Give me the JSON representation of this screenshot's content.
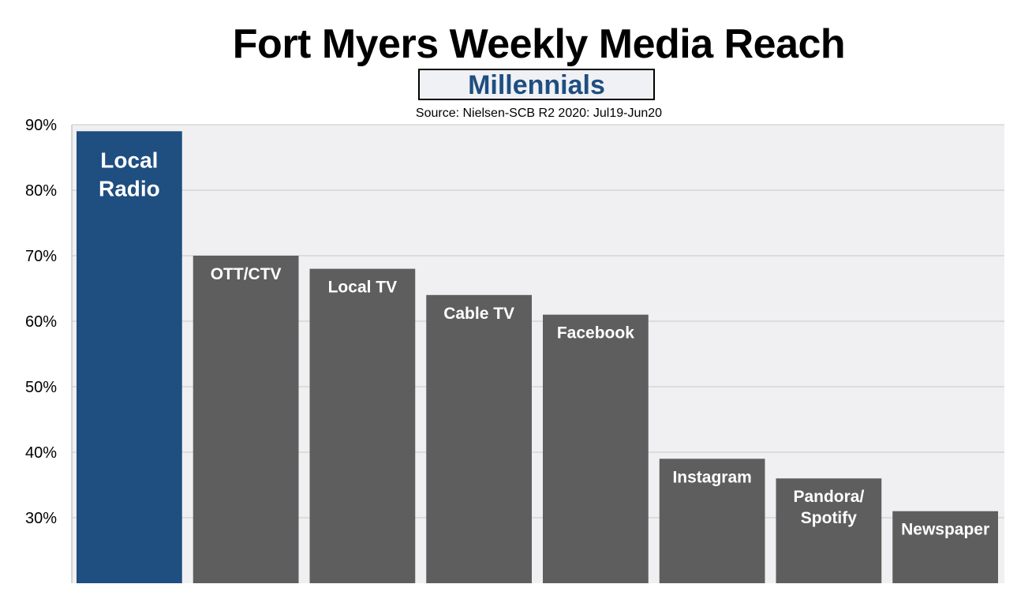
{
  "chart_data": {
    "type": "bar",
    "title": "Fort Myers Weekly Media Reach",
    "subtitle": "Millennials",
    "source": "Source: Nielsen-SCB R2 2020: Jul19-Jun20",
    "categories": [
      "Local Radio",
      "OTT/CTV",
      "Local TV",
      "Cable TV",
      "Facebook",
      "Instagram",
      "Pandora/ Spotify",
      "Newspaper"
    ],
    "bar_label_lines": [
      [
        "Local",
        "Radio"
      ],
      [
        "OTT/CTV"
      ],
      [
        "Local TV"
      ],
      [
        "Cable TV"
      ],
      [
        "Facebook"
      ],
      [
        "Instagram"
      ],
      [
        "Pandora/",
        "Spotify"
      ],
      [
        "Newspaper"
      ]
    ],
    "values": [
      89,
      70,
      68,
      64,
      61,
      39,
      36,
      31
    ],
    "ylim": [
      20,
      90
    ],
    "yticks": [
      30,
      40,
      50,
      60,
      70,
      80,
      90
    ],
    "ytick_labels": [
      "30%",
      "40%",
      "50%",
      "60%",
      "70%",
      "80%",
      "90%"
    ],
    "xlabel": "",
    "ylabel": "",
    "grid": true,
    "colors": {
      "highlight": "#1f4e80",
      "bar": "#5e5e5e",
      "plot_background": "#f0f0f2",
      "grid": "#c8c8c8",
      "subtitle_text": "#1f4e80"
    }
  }
}
